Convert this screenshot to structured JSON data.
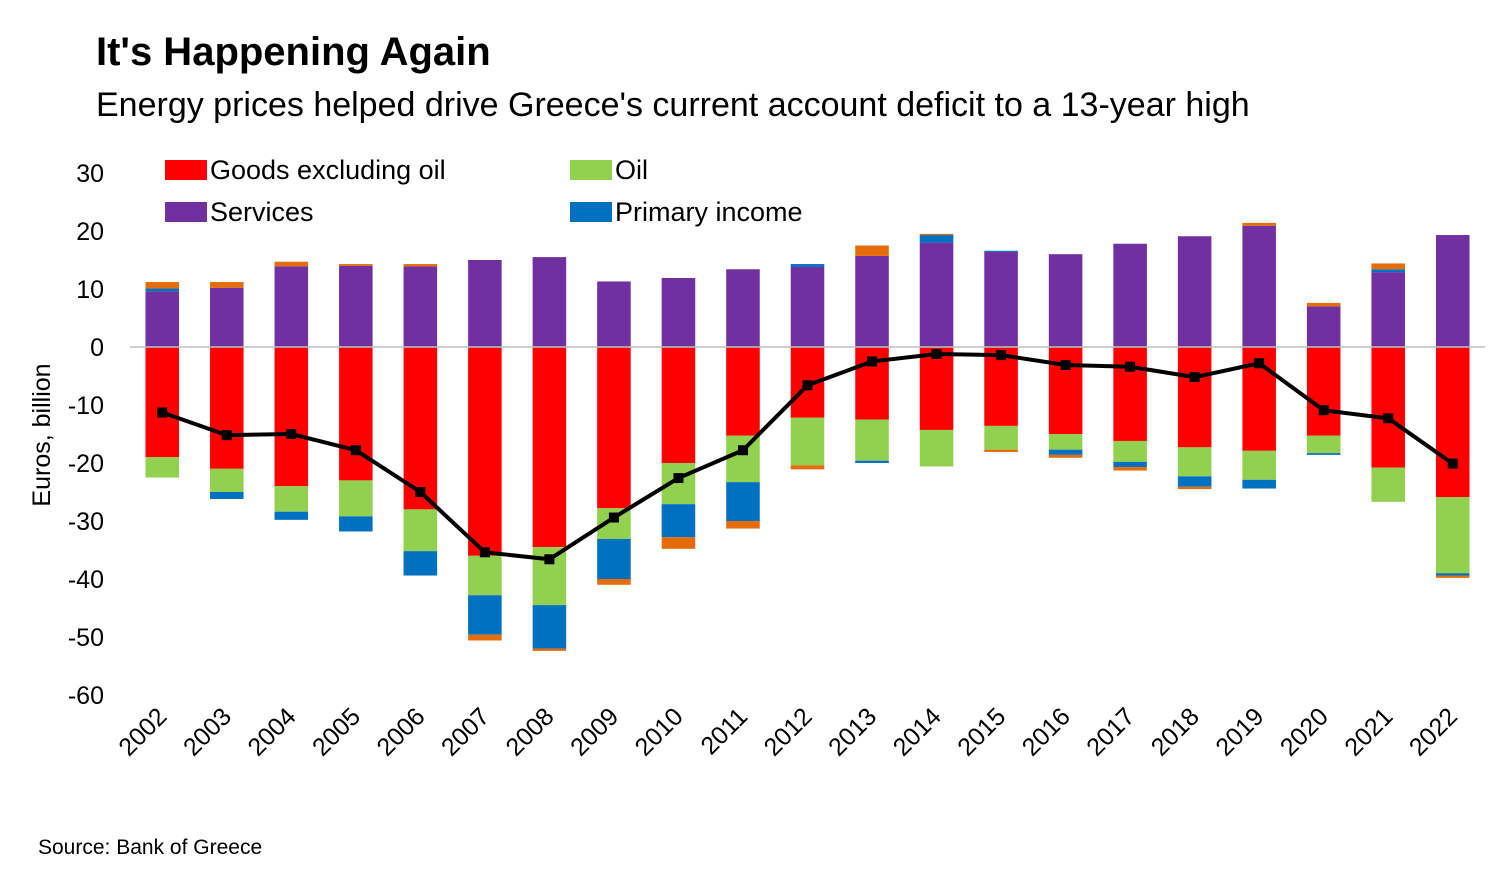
{
  "title": "It's Happening Again",
  "subtitle": "Energy prices helped drive Greece's current account deficit to a 13-year high",
  "source": "Source: Bank of Greece",
  "chart_data": {
    "type": "bar",
    "stacked": true,
    "ylabel": "Euros, billion",
    "ylim": [
      -60,
      30
    ],
    "yticks": [
      30,
      20,
      10,
      0,
      -10,
      -20,
      -30,
      -40,
      -50,
      -60
    ],
    "categories": [
      "2002",
      "2003",
      "2004",
      "2005",
      "2006",
      "2007",
      "2008",
      "2009",
      "2010",
      "2011",
      "2012",
      "2013",
      "2014",
      "2015",
      "2016",
      "2017",
      "2018",
      "2019",
      "2020",
      "2021",
      "2022"
    ],
    "legend": [
      {
        "name": "Goods excluding oil",
        "color": "#ff0000"
      },
      {
        "name": "Oil",
        "color": "#92d050"
      },
      {
        "name": "Services",
        "color": "#7030a0"
      },
      {
        "name": "Primary income",
        "color": "#0070c0"
      }
    ],
    "series": [
      {
        "name": "Goods excluding oil",
        "color": "#ff0000",
        "values": [
          -19.0,
          -21.0,
          -24.0,
          -23.0,
          -28.0,
          -36.0,
          -34.5,
          -27.8,
          -20.0,
          -15.3,
          -12.2,
          -12.5,
          -14.3,
          -13.6,
          -15.0,
          -16.2,
          -17.3,
          -17.9,
          -15.3,
          -20.8,
          -25.9
        ]
      },
      {
        "name": "Oil",
        "color": "#92d050",
        "values": [
          -3.5,
          -4.0,
          -4.4,
          -6.2,
          -7.2,
          -6.8,
          -10.0,
          -5.3,
          -7.1,
          -8.0,
          -8.2,
          -7.1,
          -6.3,
          -4.1,
          -2.7,
          -3.6,
          -5.0,
          -5.0,
          -3.0,
          -5.9,
          -13.1
        ]
      },
      {
        "name": "Services",
        "color": "#7030a0",
        "values": [
          9.6,
          10.2,
          13.9,
          14.0,
          13.9,
          15.0,
          15.5,
          11.3,
          11.9,
          13.4,
          13.8,
          15.7,
          18.0,
          16.4,
          16.0,
          17.8,
          19.1,
          20.9,
          7.0,
          12.9,
          19.3
        ]
      },
      {
        "name": "Primary income",
        "color": "#0070c0",
        "values": [
          0.5,
          -1.2,
          -1.4,
          -2.6,
          -4.2,
          -6.8,
          -7.5,
          -6.9,
          -5.7,
          -6.7,
          0.5,
          -0.4,
          1.3,
          0.2,
          -0.9,
          -0.9,
          -1.8,
          -1.5,
          -0.3,
          0.5,
          -0.4
        ]
      },
      {
        "name": "Other",
        "color": "#e46c0a",
        "values": [
          1.1,
          1.0,
          0.8,
          0.3,
          0.4,
          -1.0,
          -0.4,
          -1.0,
          -2.0,
          -1.3,
          -0.7,
          1.8,
          0.2,
          -0.4,
          -0.5,
          -0.6,
          -0.4,
          0.5,
          0.6,
          1.0,
          -0.4
        ]
      },
      {
        "name": "Current account balance",
        "type": "line",
        "color": "#000000",
        "values": [
          -11.3,
          -15.2,
          -15.0,
          -17.8,
          -25.0,
          -35.4,
          -36.6,
          -29.4,
          -22.6,
          -17.8,
          -6.6,
          -2.5,
          -1.2,
          -1.4,
          -3.1,
          -3.4,
          -5.2,
          -2.8,
          -10.9,
          -12.3,
          -20.1
        ]
      }
    ]
  }
}
